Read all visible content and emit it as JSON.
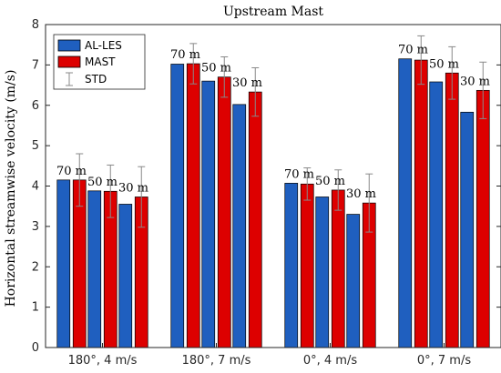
{
  "chart_data": {
    "type": "bar",
    "title": "Upstream Mast",
    "xlabel": "",
    "ylabel": "Horizontal streamwise velocity (m/s)",
    "ylim": [
      0,
      8
    ],
    "yticks": [
      0,
      1,
      2,
      3,
      4,
      5,
      6,
      7,
      8
    ],
    "grid": false,
    "legend_position": "top-left",
    "categories": [
      "180°, 4 m/s",
      "180°, 7 m/s",
      "0°, 4 m/s",
      "0°, 7 m/s"
    ],
    "heights": [
      "70 m",
      "50 m",
      "30 m"
    ],
    "series": [
      {
        "name": "AL-LES",
        "color": "#1f5fbf",
        "values": [
          [
            4.15,
            3.88,
            3.55
          ],
          [
            7.02,
            6.6,
            6.02
          ],
          [
            4.07,
            3.73,
            3.3
          ],
          [
            7.15,
            6.58,
            5.83
          ]
        ]
      },
      {
        "name": "MAST",
        "color": "#dd0000",
        "values": [
          [
            4.15,
            3.87,
            3.73
          ],
          [
            7.03,
            6.7,
            6.33
          ],
          [
            4.05,
            3.9,
            3.58
          ],
          [
            7.12,
            6.8,
            6.37
          ]
        ],
        "std": [
          [
            0.65,
            0.65,
            0.75
          ],
          [
            0.5,
            0.5,
            0.6
          ],
          [
            0.4,
            0.5,
            0.72
          ],
          [
            0.6,
            0.65,
            0.7
          ]
        ]
      },
      {
        "name": "STD",
        "color": "#888888"
      }
    ]
  }
}
